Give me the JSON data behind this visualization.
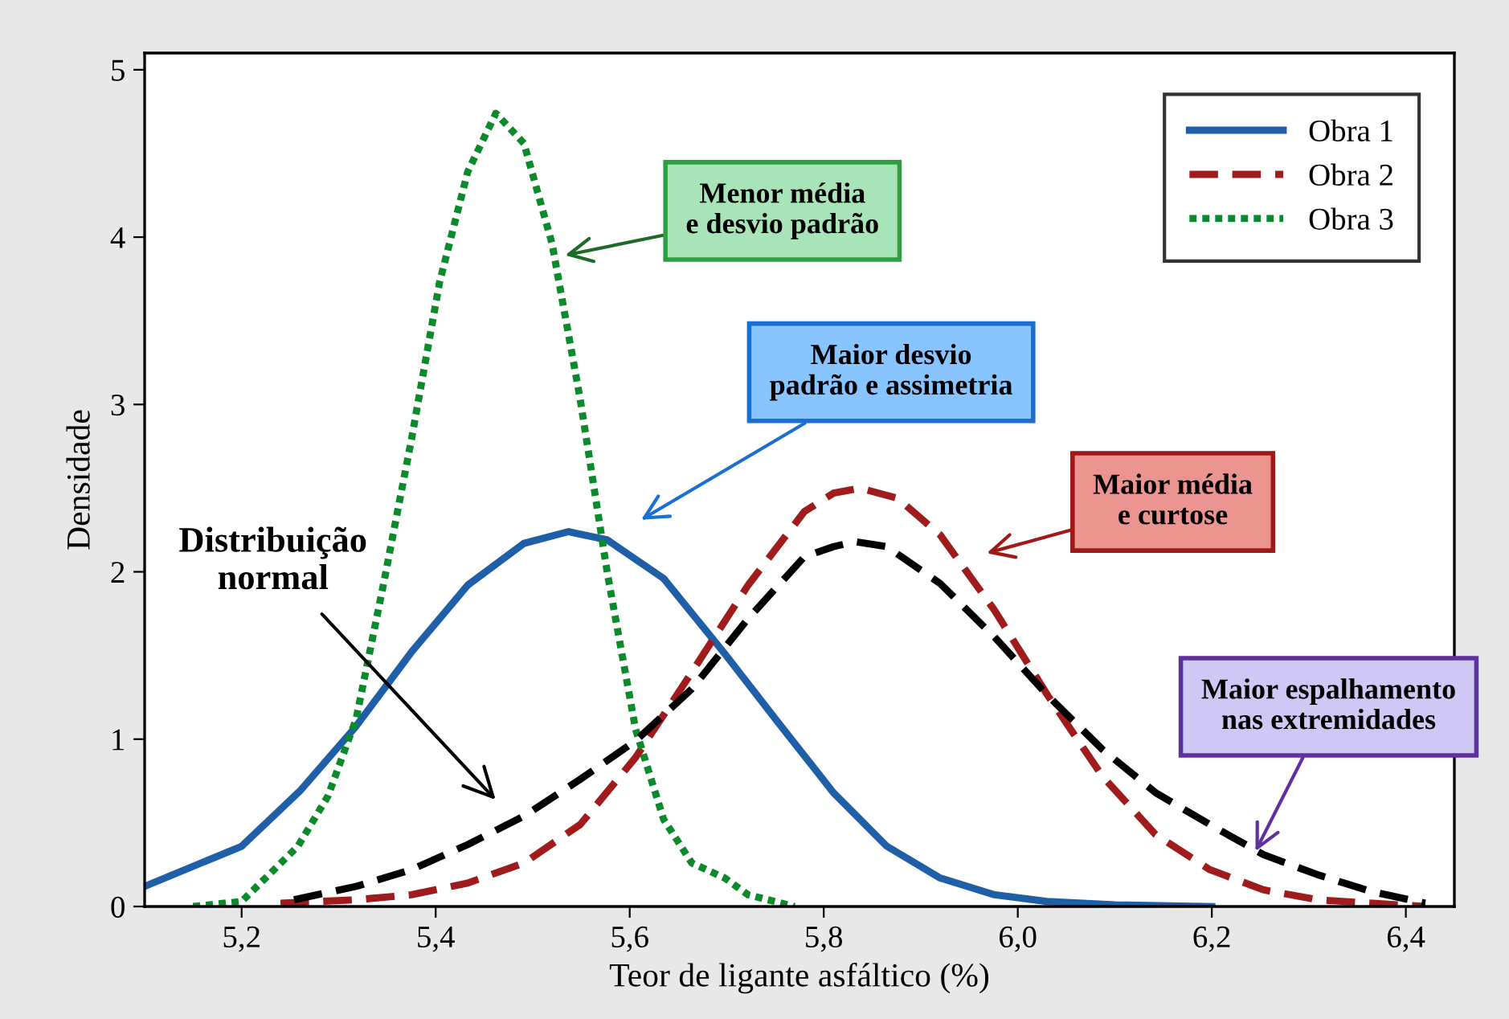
{
  "chart_data": {
    "type": "line",
    "xlabel": "Teor de ligante asfáltico (%)",
    "ylabel": "Densidade",
    "xlim": [
      5.1,
      6.45
    ],
    "ylim": [
      0,
      5.1
    ],
    "xticks": [
      {
        "value": 5.2,
        "label": "5,2"
      },
      {
        "value": 5.4,
        "label": "5,4"
      },
      {
        "value": 5.6,
        "label": "5,6"
      },
      {
        "value": 5.8,
        "label": "5,8"
      },
      {
        "value": 6.0,
        "label": "6,0"
      },
      {
        "value": 6.2,
        "label": "6,2"
      },
      {
        "value": 6.4,
        "label": "6,4"
      }
    ],
    "yticks": [
      0,
      1,
      2,
      3,
      4,
      5
    ],
    "grid": false,
    "legend": "top right",
    "series": [
      {
        "name": "Obra 1",
        "color": "#1f5fa8",
        "line_style": "solid",
        "x": [
          5.1,
          5.2,
          5.26,
          5.317,
          5.375,
          5.433,
          5.491,
          5.537,
          5.577,
          5.635,
          5.698,
          5.753,
          5.81,
          5.865,
          5.92,
          5.976,
          6.03,
          6.1,
          6.2
        ],
        "values": [
          0.12,
          0.36,
          0.69,
          1.07,
          1.52,
          1.92,
          2.17,
          2.24,
          2.19,
          1.96,
          1.51,
          1.1,
          0.68,
          0.36,
          0.17,
          0.07,
          0.03,
          0.01,
          0
        ]
      },
      {
        "name": "Obra 2",
        "color": "#a01c1c",
        "line_style": "dashed",
        "x": [
          5.24,
          5.318,
          5.375,
          5.433,
          5.491,
          5.549,
          5.606,
          5.664,
          5.722,
          5.78,
          5.81,
          5.837,
          5.876,
          5.92,
          5.976,
          6.031,
          6.087,
          6.142,
          6.198,
          6.253,
          6.309,
          6.42
        ],
        "values": [
          0.02,
          0.04,
          0.07,
          0.14,
          0.26,
          0.49,
          0.89,
          1.4,
          1.92,
          2.36,
          2.47,
          2.5,
          2.44,
          2.22,
          1.77,
          1.26,
          0.78,
          0.43,
          0.22,
          0.1,
          0.04,
          0
        ]
      },
      {
        "name": "Obra 3",
        "color": "#0a8a2a",
        "line_style": "dotted",
        "x": [
          5.15,
          5.2,
          5.258,
          5.289,
          5.318,
          5.346,
          5.375,
          5.404,
          5.433,
          5.462,
          5.491,
          5.52,
          5.549,
          5.577,
          5.606,
          5.635,
          5.664,
          5.698,
          5.722,
          5.77
        ],
        "values": [
          0,
          0.03,
          0.36,
          0.66,
          1.12,
          1.92,
          2.79,
          3.73,
          4.39,
          4.74,
          4.56,
          3.96,
          3.03,
          1.99,
          1.06,
          0.52,
          0.26,
          0.17,
          0.07,
          0
        ]
      },
      {
        "color": "#000000",
        "line_style": "dashed",
        "x": [
          5.254,
          5.318,
          5.375,
          5.433,
          5.491,
          5.549,
          5.606,
          5.664,
          5.722,
          5.78,
          5.81,
          5.832,
          5.865,
          5.92,
          5.976,
          6.031,
          6.087,
          6.142,
          6.198,
          6.253,
          6.309,
          6.364,
          6.42
        ],
        "values": [
          0.04,
          0.12,
          0.22,
          0.37,
          0.54,
          0.76,
          0.99,
          1.3,
          1.72,
          2.09,
          2.15,
          2.18,
          2.15,
          1.93,
          1.61,
          1.26,
          0.94,
          0.68,
          0.49,
          0.31,
          0.19,
          0.09,
          0.02
        ]
      }
    ],
    "annotations": [
      "Distribuição\nnormal",
      "Menor média\ne desvio padrão",
      "Maior desvio\npadrão e assimetria",
      "Maior média\ne curtose",
      {
        "text": "Maior espalhamento\nnas extremidades",
        "x": 6.245,
        "y": 0.33
      }
    ]
  }
}
